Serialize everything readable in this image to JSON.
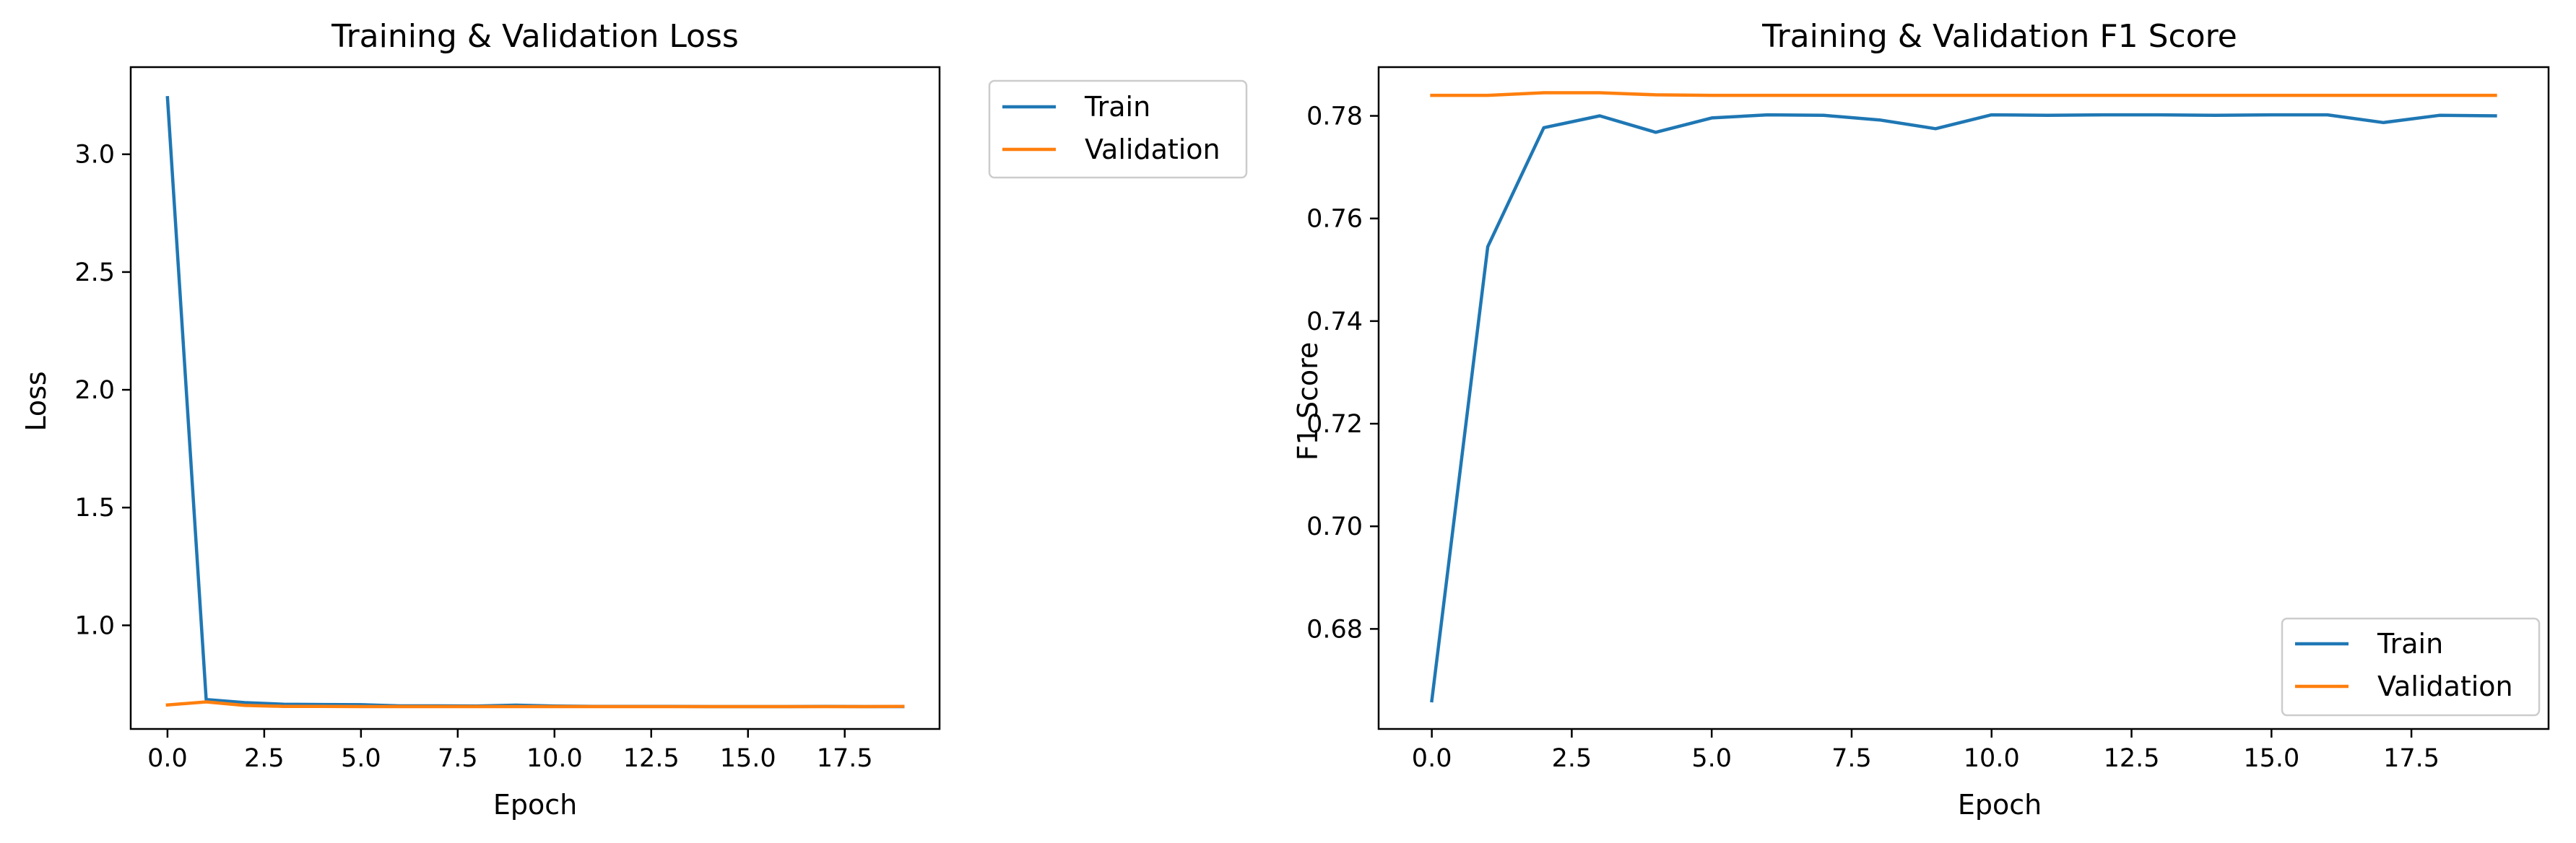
{
  "chart_data": [
    {
      "type": "line",
      "title": "Training & Validation Loss",
      "xlabel": "Epoch",
      "ylabel": "Loss",
      "xlim": [
        -0.95,
        19.95
      ],
      "ylim": [
        0.56,
        3.37
      ],
      "xticks": [
        0.0,
        2.5,
        5.0,
        7.5,
        10.0,
        12.5,
        15.0,
        17.5
      ],
      "xtick_labels": [
        "0.0",
        "2.5",
        "5.0",
        "7.5",
        "10.0",
        "12.5",
        "15.0",
        "17.5"
      ],
      "yticks": [
        1.0,
        1.5,
        2.0,
        2.5,
        3.0
      ],
      "ytick_labels": [
        "1.0",
        "1.5",
        "2.0",
        "2.5",
        "3.0"
      ],
      "grid": false,
      "legend_position": "top-right",
      "x": [
        0,
        1,
        2,
        3,
        4,
        5,
        6,
        7,
        8,
        9,
        10,
        11,
        12,
        13,
        14,
        15,
        16,
        17,
        18,
        19
      ],
      "series": [
        {
          "name": "Train",
          "color": "#1f77b4",
          "values": [
            3.24,
            0.685,
            0.672,
            0.665,
            0.664,
            0.663,
            0.658,
            0.658,
            0.657,
            0.661,
            0.657,
            0.656,
            0.656,
            0.656,
            0.655,
            0.655,
            0.655,
            0.656,
            0.655,
            0.655
          ]
        },
        {
          "name": "Validation",
          "color": "#ff7f0e",
          "values": [
            0.662,
            0.675,
            0.66,
            0.656,
            0.656,
            0.655,
            0.655,
            0.655,
            0.655,
            0.655,
            0.655,
            0.655,
            0.655,
            0.655,
            0.655,
            0.655,
            0.655,
            0.655,
            0.655,
            0.656
          ]
        }
      ]
    },
    {
      "type": "line",
      "title": "Training & Validation F1 Score",
      "xlabel": "Epoch",
      "ylabel": "F1 Score",
      "xlim": [
        -0.95,
        19.95
      ],
      "ylim": [
        0.6605,
        0.7895
      ],
      "xticks": [
        0.0,
        2.5,
        5.0,
        7.5,
        10.0,
        12.5,
        15.0,
        17.5
      ],
      "xtick_labels": [
        "0.0",
        "2.5",
        "5.0",
        "7.5",
        "10.0",
        "12.5",
        "15.0",
        "17.5"
      ],
      "yticks": [
        0.68,
        0.7,
        0.72,
        0.74,
        0.76,
        0.78
      ],
      "ytick_labels": [
        "0.68",
        "0.70",
        "0.72",
        "0.74",
        "0.76",
        "0.78"
      ],
      "grid": false,
      "legend_position": "bottom-right",
      "x": [
        0,
        1,
        2,
        3,
        4,
        5,
        6,
        7,
        8,
        9,
        10,
        11,
        12,
        13,
        14,
        15,
        16,
        17,
        18,
        19
      ],
      "series": [
        {
          "name": "Train",
          "color": "#1f77b4",
          "values": [
            0.666,
            0.7545,
            0.7777,
            0.78,
            0.7768,
            0.7796,
            0.7802,
            0.7801,
            0.7792,
            0.7775,
            0.7802,
            0.7801,
            0.7802,
            0.7802,
            0.7801,
            0.7802,
            0.7802,
            0.7787,
            0.7801,
            0.78
          ]
        },
        {
          "name": "Validation",
          "color": "#ff7f0e",
          "values": [
            0.784,
            0.784,
            0.7845,
            0.7845,
            0.7841,
            0.784,
            0.784,
            0.784,
            0.784,
            0.784,
            0.784,
            0.784,
            0.784,
            0.784,
            0.784,
            0.784,
            0.784,
            0.784,
            0.784,
            0.784
          ]
        }
      ]
    }
  ]
}
